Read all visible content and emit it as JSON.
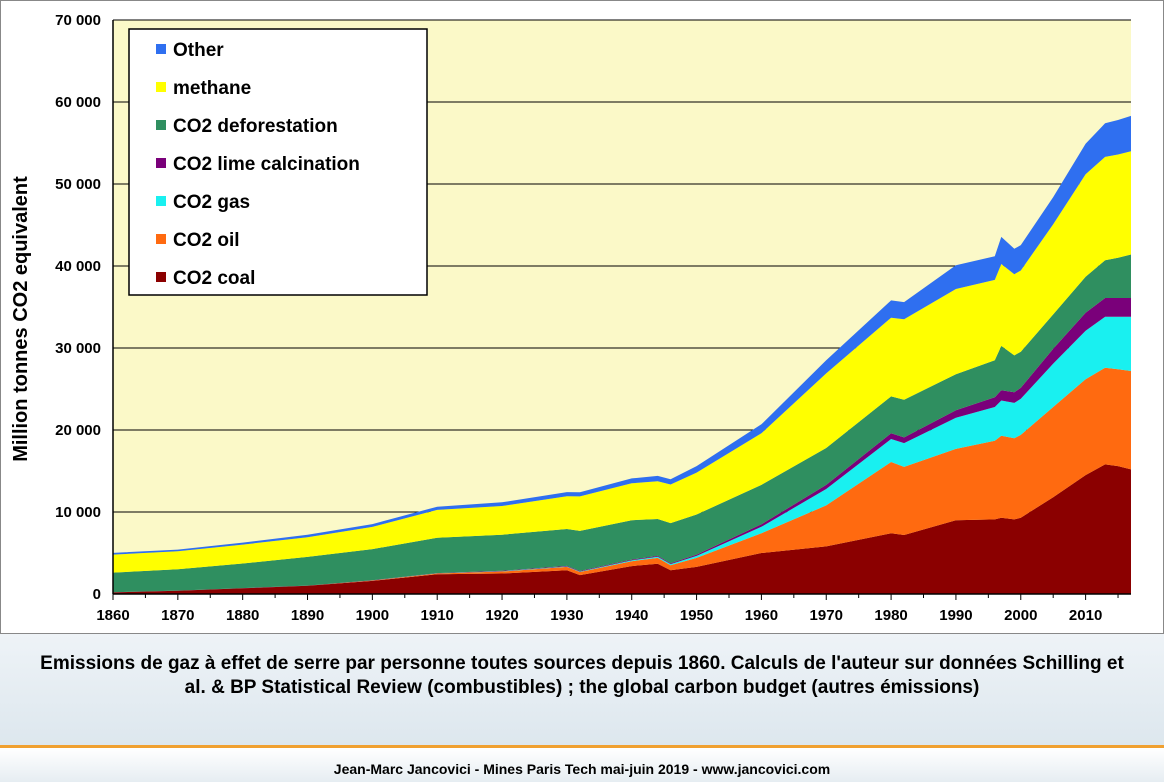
{
  "caption": "Emissions de gaz à effet de serre par personne toutes sources depuis 1860. Calculs de l'auteur sur données Schilling et al. & BP Statistical Review (combustibles) ; the global carbon budget (autres émissions)",
  "footer": "Jean-Marc Jancovici - Mines Paris Tech mai-juin 2019 - www.jancovici.com",
  "chart_data": {
    "type": "area",
    "stacked": true,
    "ylabel": "Million tonnes CO2 equivalent",
    "xlabel": "",
    "xlim": [
      1860,
      2017
    ],
    "ylim": [
      0,
      70000
    ],
    "x_ticks": [
      "1860",
      "1870",
      "1880",
      "1890",
      "1900",
      "1910",
      "1920",
      "1930",
      "1940",
      "1950",
      "1960",
      "1970",
      "1980",
      "1990",
      "2000",
      "2010"
    ],
    "y_ticks": [
      "0",
      "10 000",
      "20 000",
      "30 000",
      "40 000",
      "50 000",
      "60 000",
      "70 000"
    ],
    "grid": "horizontal",
    "legend_position": "top-left",
    "plot_background": "#fbf9c8",
    "x": [
      1860,
      1870,
      1880,
      1890,
      1900,
      1910,
      1920,
      1930,
      1932,
      1940,
      1944,
      1946,
      1950,
      1960,
      1970,
      1980,
      1982,
      1990,
      1996,
      1997,
      1999,
      2000,
      2005,
      2010,
      2013,
      2015,
      2017
    ],
    "series": [
      {
        "name": "CO2 coal",
        "color": "#8b0000",
        "values": [
          200,
          400,
          700,
          1000,
          1600,
          2400,
          2500,
          2900,
          2300,
          3400,
          3700,
          2900,
          3300,
          5000,
          5800,
          7400,
          7200,
          9000,
          9100,
          9300,
          9100,
          9300,
          11800,
          14500,
          15800,
          15600,
          15200
        ]
      },
      {
        "name": "CO2 oil",
        "color": "#ff6a10",
        "values": [
          0,
          0,
          0,
          0,
          50,
          100,
          250,
          400,
          380,
          600,
          700,
          600,
          1100,
          2400,
          5000,
          8700,
          8300,
          8700,
          9600,
          10000,
          9900,
          10100,
          11000,
          11700,
          11800,
          11800,
          12000
        ]
      },
      {
        "name": "CO2 gas",
        "color": "#19f0f0",
        "values": [
          0,
          0,
          0,
          0,
          0,
          10,
          30,
          50,
          50,
          100,
          150,
          150,
          250,
          800,
          2000,
          2800,
          2900,
          3800,
          4100,
          4300,
          4300,
          4400,
          5300,
          5900,
          6200,
          6400,
          6600
        ]
      },
      {
        "name": "CO2 lime calcination",
        "color": "#7a007a",
        "values": [
          10,
          15,
          20,
          25,
          30,
          40,
          50,
          80,
          70,
          100,
          100,
          100,
          150,
          300,
          500,
          700,
          700,
          900,
          1200,
          1250,
          1300,
          1350,
          1800,
          2200,
          2300,
          2300,
          2300
        ]
      },
      {
        "name": "CO2 deforestation",
        "color": "#2f8f60",
        "values": [
          2400,
          2600,
          3000,
          3500,
          3800,
          4300,
          4400,
          4500,
          4900,
          4800,
          4500,
          4900,
          4900,
          4800,
          4500,
          4500,
          4600,
          4400,
          4500,
          5400,
          4500,
          4400,
          4200,
          4400,
          4600,
          4900,
          5300
        ]
      },
      {
        "name": "methane",
        "color": "#ffff00",
        "values": [
          2200,
          2200,
          2300,
          2400,
          2700,
          3400,
          3500,
          4000,
          4200,
          4500,
          4600,
          4700,
          5100,
          6300,
          9100,
          9600,
          9800,
          10400,
          9800,
          10000,
          9900,
          9900,
          11000,
          12500,
          12600,
          12600,
          12600
        ]
      },
      {
        "name": "Other",
        "color": "#2f6ff0",
        "values": [
          200,
          200,
          250,
          300,
          350,
          400,
          450,
          500,
          500,
          600,
          650,
          650,
          800,
          1100,
          1600,
          2100,
          2100,
          2900,
          2900,
          3300,
          3100,
          3100,
          3300,
          3700,
          4100,
          4200,
          4300
        ]
      }
    ],
    "legend_order": [
      "Other",
      "methane",
      "CO2 deforestation",
      "CO2 lime calcination",
      "CO2 gas",
      "CO2 oil",
      "CO2 coal"
    ]
  }
}
